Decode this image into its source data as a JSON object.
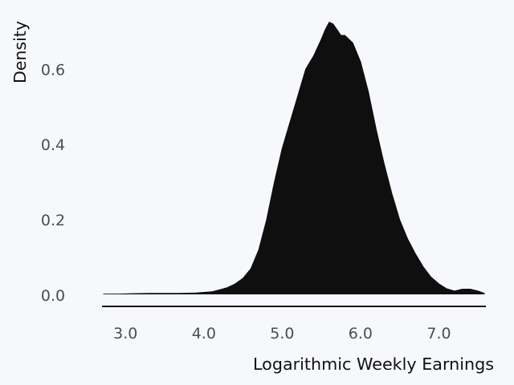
{
  "chart_data": {
    "type": "area",
    "title": "",
    "xlabel": "Logarithmic Weekly Earnings",
    "ylabel": "Density",
    "xlim": [
      2.7,
      7.6
    ],
    "ylim": [
      0.0,
      0.72
    ],
    "x_ticks": [
      3.0,
      4.0,
      5.0,
      6.0,
      7.0
    ],
    "x_tick_labels": [
      "3.0",
      "4.0",
      "5.0",
      "6.0",
      "7.0"
    ],
    "y_ticks": [
      0.0,
      0.2,
      0.4,
      0.6
    ],
    "y_tick_labels": [
      "0.0",
      "0.2",
      "0.4",
      "0.6"
    ],
    "grid": false,
    "legend": "none",
    "fill_color": "#0f0f0f",
    "background_color": "#f6f8fb",
    "series": [
      {
        "x": [
          2.72,
          2.9,
          3.1,
          3.3,
          3.5,
          3.7,
          3.9,
          4.1,
          4.2,
          4.3,
          4.4,
          4.5,
          4.6,
          4.7,
          4.8,
          4.9,
          5.0,
          5.1,
          5.2,
          5.3,
          5.4,
          5.5,
          5.55,
          5.6,
          5.65,
          5.7,
          5.75,
          5.8,
          5.9,
          6.0,
          6.1,
          6.2,
          6.3,
          6.4,
          6.5,
          6.6,
          6.7,
          6.8,
          6.9,
          7.0,
          7.1,
          7.2,
          7.3,
          7.4,
          7.5,
          7.58
        ],
        "y": [
          0.003,
          0.003,
          0.004,
          0.005,
          0.005,
          0.005,
          0.006,
          0.009,
          0.014,
          0.02,
          0.03,
          0.045,
          0.07,
          0.12,
          0.2,
          0.3,
          0.39,
          0.46,
          0.53,
          0.6,
          0.635,
          0.68,
          0.705,
          0.725,
          0.72,
          0.705,
          0.69,
          0.69,
          0.67,
          0.62,
          0.54,
          0.44,
          0.35,
          0.27,
          0.2,
          0.15,
          0.11,
          0.075,
          0.048,
          0.03,
          0.017,
          0.011,
          0.016,
          0.016,
          0.011,
          0.005
        ]
      }
    ]
  }
}
